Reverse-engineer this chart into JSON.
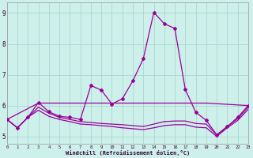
{
  "xlabel": "Windchill (Refroidissement éolien,°C)",
  "xlim": [
    0,
    23
  ],
  "ylim": [
    4.75,
    9.35
  ],
  "yticks": [
    5,
    6,
    7,
    8,
    9
  ],
  "xticks": [
    0,
    1,
    2,
    3,
    4,
    5,
    6,
    7,
    8,
    9,
    10,
    11,
    12,
    13,
    14,
    15,
    16,
    17,
    18,
    19,
    20,
    21,
    22,
    23
  ],
  "background_color": "#cef0ea",
  "grid_color": "#a8d8d0",
  "line_color": "#990099",
  "line1_x": [
    0,
    1,
    2,
    3,
    4,
    5,
    6,
    7,
    8,
    9,
    10,
    11,
    12,
    13,
    14,
    15,
    16,
    17,
    18,
    19,
    20,
    21,
    22,
    23
  ],
  "line1_y": [
    5.55,
    5.28,
    5.62,
    6.1,
    5.8,
    5.65,
    5.62,
    5.55,
    6.65,
    6.5,
    6.05,
    6.22,
    6.8,
    7.52,
    9.02,
    8.65,
    8.5,
    6.52,
    5.78,
    5.52,
    5.05,
    5.32,
    5.62,
    6.0
  ],
  "line2_x": [
    0,
    3,
    10,
    14,
    19,
    23
  ],
  "line2_y": [
    5.55,
    6.08,
    6.08,
    6.08,
    6.08,
    6.0
  ],
  "line3_x": [
    0,
    1,
    2,
    3,
    4,
    5,
    6,
    7,
    8,
    9,
    10,
    11,
    12,
    13,
    14,
    15,
    16,
    17,
    18,
    19,
    20,
    21,
    22,
    23
  ],
  "line3_y": [
    5.55,
    5.28,
    5.62,
    5.95,
    5.75,
    5.62,
    5.55,
    5.48,
    5.45,
    5.42,
    5.4,
    5.38,
    5.35,
    5.32,
    5.4,
    5.48,
    5.5,
    5.5,
    5.42,
    5.4,
    5.05,
    5.32,
    5.58,
    5.95
  ],
  "line4_x": [
    0,
    1,
    2,
    3,
    4,
    5,
    6,
    7,
    8,
    9,
    10,
    11,
    12,
    13,
    14,
    15,
    16,
    17,
    18,
    19,
    20,
    21,
    22,
    23
  ],
  "line4_y": [
    5.55,
    5.28,
    5.62,
    5.85,
    5.65,
    5.55,
    5.48,
    5.4,
    5.38,
    5.35,
    5.32,
    5.28,
    5.25,
    5.22,
    5.28,
    5.35,
    5.38,
    5.38,
    5.3,
    5.28,
    5.0,
    5.28,
    5.52,
    5.88
  ]
}
